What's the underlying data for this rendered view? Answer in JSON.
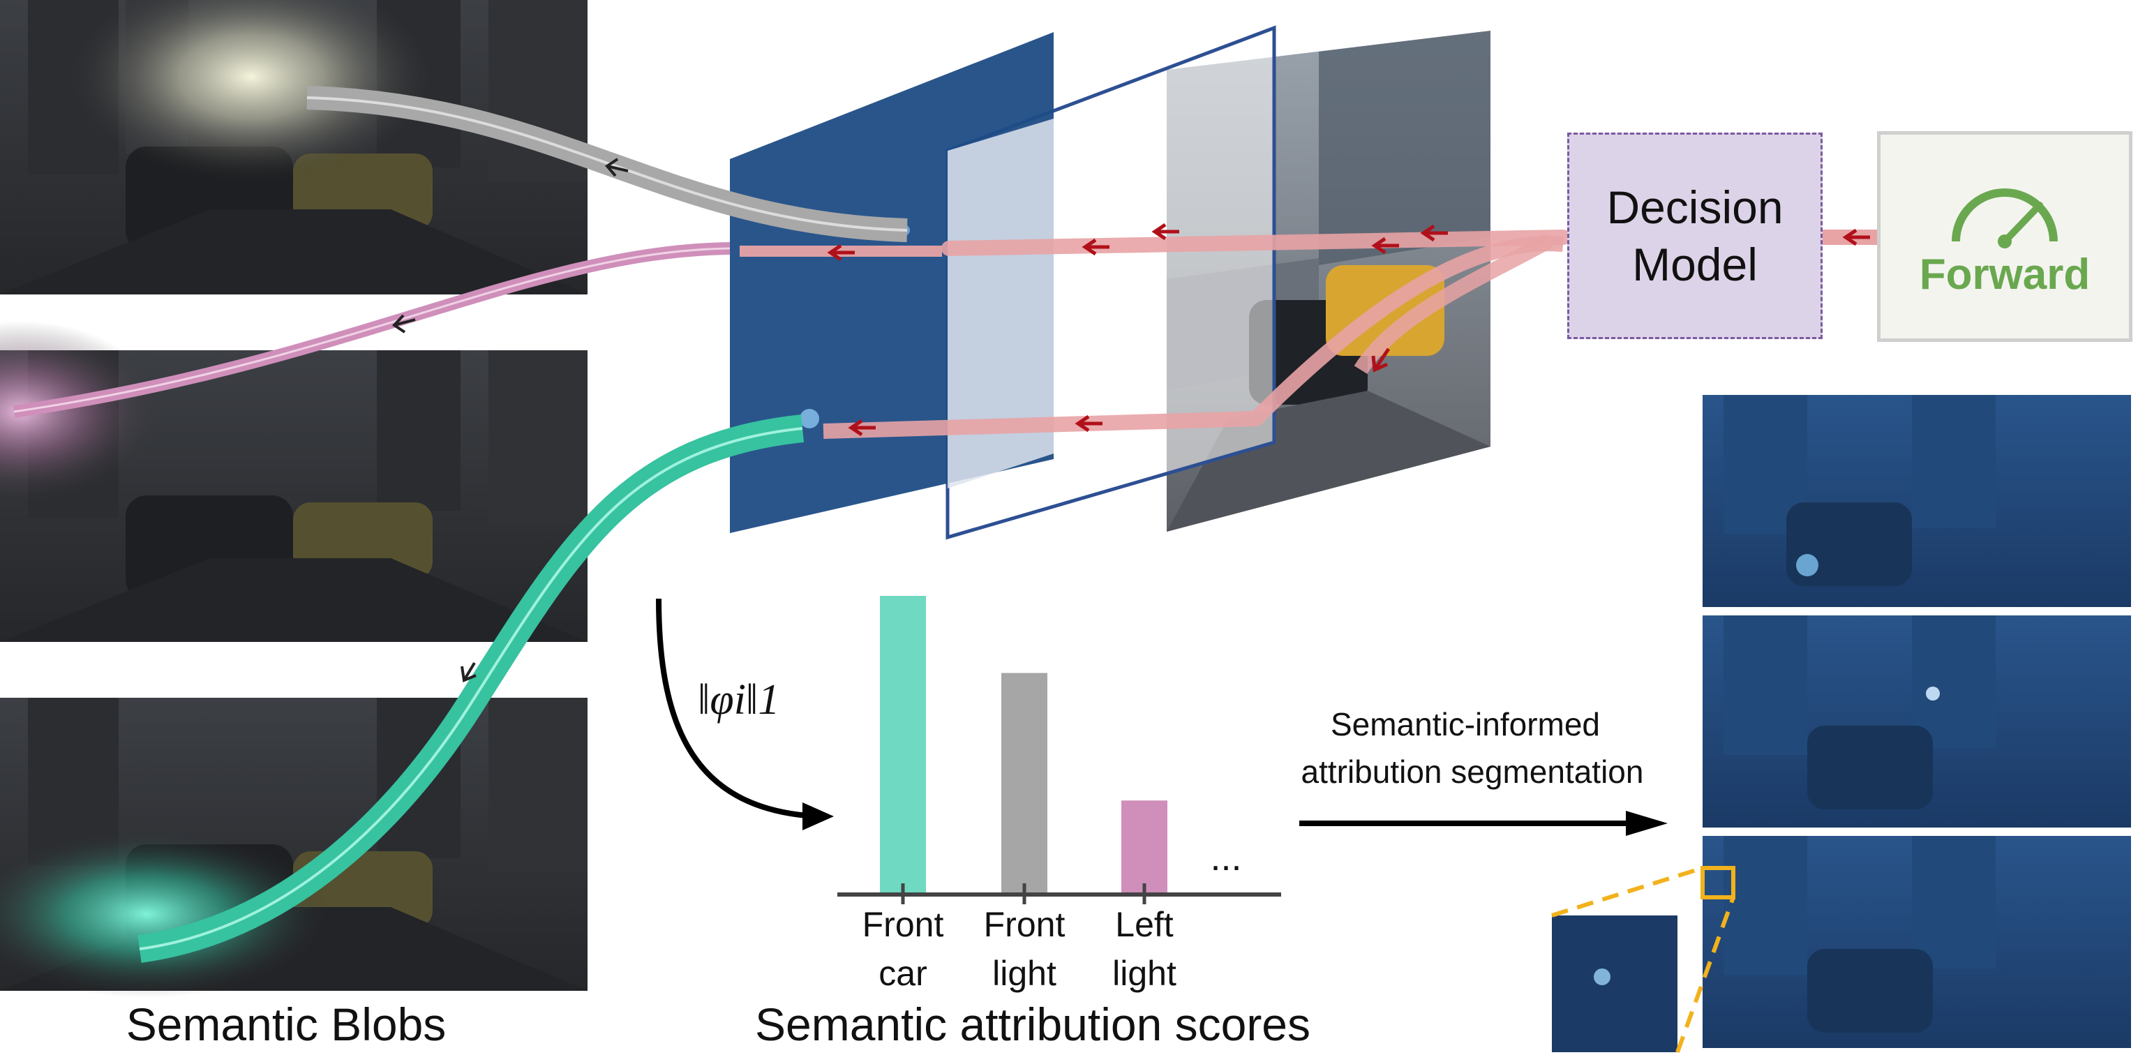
{
  "captions": {
    "blobs": "Semantic Blobs",
    "scores": "Semantic attribution scores"
  },
  "decision_model": {
    "line1": "Decision",
    "line2": "Model"
  },
  "forward": {
    "label": "Forward",
    "icon": "speedometer-icon"
  },
  "formula": {
    "text": "‖φi‖1"
  },
  "segmentation": {
    "line1": "Semantic-informed",
    "line2": "attribution segmentation"
  },
  "colors": {
    "car": "#6fd9c1",
    "light": "#a6a6a6",
    "left_light": "#cf8fba",
    "arrow_flow": "#e8a3a5",
    "arrow_head": "#b0101a",
    "decision_box": "#ddd3e8",
    "decision_border": "#7a5aa0",
    "forward_green": "#6aa84f",
    "heatmap_blue": "#1c3f6e",
    "zoom_yellow": "#f2b21c"
  },
  "chart_data": {
    "type": "bar",
    "categories": [
      "Front car",
      "Front light",
      "Left light"
    ],
    "category_lines": [
      [
        "Front",
        "car"
      ],
      [
        "Front",
        "light"
      ],
      [
        "Left",
        "light"
      ]
    ],
    "values": [
      1.0,
      0.74,
      0.31
    ],
    "colors": [
      "#6fd9c1",
      "#a6a6a6",
      "#cf8fba"
    ],
    "ellipsis": "...",
    "ylim": [
      0,
      1.0
    ]
  }
}
